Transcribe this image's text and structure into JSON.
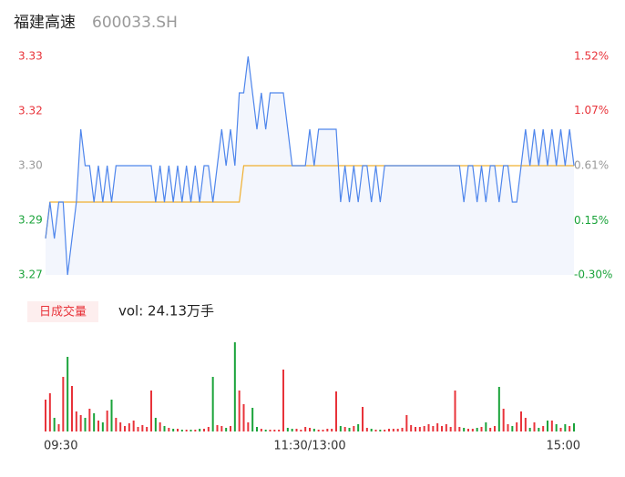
{
  "chart_data": {
    "type": "line",
    "title": "福建高速",
    "subtitle": "600033.SH",
    "x": [
      0,
      2,
      4,
      6,
      8,
      10,
      12,
      14,
      16,
      18,
      20,
      22,
      24,
      26,
      28,
      30,
      32,
      34,
      36,
      38,
      40,
      42,
      44,
      46,
      48,
      50,
      52,
      54,
      56,
      58,
      60,
      62,
      64,
      66,
      68,
      70,
      72,
      74,
      76,
      78,
      80,
      82,
      84,
      86,
      88,
      90,
      92,
      94,
      96,
      98,
      100,
      102,
      104,
      106,
      108,
      110,
      112,
      114,
      116,
      118,
      120,
      122,
      124,
      126,
      128,
      130,
      132,
      134,
      136,
      138,
      140,
      142,
      144,
      146,
      148,
      150,
      152,
      154,
      156,
      158,
      160,
      162,
      164,
      166,
      168,
      170,
      172,
      174,
      176,
      178,
      180,
      182,
      184,
      186,
      188,
      190,
      192,
      194,
      196,
      198,
      200,
      202,
      204,
      206,
      208,
      210,
      212,
      214,
      216,
      218,
      220,
      222,
      224,
      226,
      228,
      230,
      232,
      234,
      236,
      238,
      240
    ],
    "series": [
      {
        "color": "#4f86ec",
        "values": [
          3.28,
          3.29,
          3.28,
          3.29,
          3.29,
          3.27,
          3.28,
          3.29,
          3.31,
          3.3,
          3.3,
          3.29,
          3.3,
          3.29,
          3.3,
          3.29,
          3.3,
          3.3,
          3.3,
          3.3,
          3.3,
          3.3,
          3.3,
          3.3,
          3.3,
          3.29,
          3.3,
          3.29,
          3.3,
          3.29,
          3.3,
          3.29,
          3.3,
          3.29,
          3.3,
          3.29,
          3.3,
          3.3,
          3.29,
          3.3,
          3.31,
          3.3,
          3.31,
          3.3,
          3.32,
          3.32,
          3.33,
          3.32,
          3.31,
          3.32,
          3.31,
          3.32,
          3.32,
          3.32,
          3.32,
          3.31,
          3.3,
          3.3,
          3.3,
          3.3,
          3.31,
          3.3,
          3.31,
          3.31,
          3.31,
          3.31,
          3.31,
          3.29,
          3.3,
          3.29,
          3.3,
          3.29,
          3.3,
          3.3,
          3.29,
          3.3,
          3.29,
          3.3,
          3.3,
          3.3,
          3.3,
          3.3,
          3.3,
          3.3,
          3.3,
          3.3,
          3.3,
          3.3,
          3.3,
          3.3,
          3.3,
          3.3,
          3.3,
          3.3,
          3.3,
          3.29,
          3.3,
          3.3,
          3.29,
          3.3,
          3.29,
          3.3,
          3.3,
          3.29,
          3.3,
          3.3,
          3.29,
          3.29,
          3.3,
          3.31,
          3.3,
          3.31,
          3.3,
          3.31,
          3.3,
          3.31,
          3.3,
          3.31,
          3.3,
          3.31,
          3.3
        ]
      },
      {
        "color": "#f0b030",
        "values": [
          3.28,
          3.29,
          3.29,
          3.29,
          3.29,
          3.29,
          3.29,
          3.29,
          3.29,
          3.29,
          3.29,
          3.29,
          3.29,
          3.29,
          3.29,
          3.29,
          3.29,
          3.29,
          3.29,
          3.29,
          3.29,
          3.29,
          3.29,
          3.29,
          3.29,
          3.29,
          3.29,
          3.29,
          3.29,
          3.29,
          3.29,
          3.29,
          3.29,
          3.29,
          3.29,
          3.29,
          3.29,
          3.29,
          3.29,
          3.29,
          3.29,
          3.29,
          3.29,
          3.29,
          3.29,
          3.3,
          3.3,
          3.3,
          3.3,
          3.3,
          3.3,
          3.3,
          3.3,
          3.3,
          3.3,
          3.3,
          3.3,
          3.3,
          3.3,
          3.3,
          3.3,
          3.3,
          3.3,
          3.3,
          3.3,
          3.3,
          3.3,
          3.3,
          3.3,
          3.3,
          3.3,
          3.3,
          3.3,
          3.3,
          3.3,
          3.3,
          3.3,
          3.3,
          3.3,
          3.3,
          3.3,
          3.3,
          3.3,
          3.3,
          3.3,
          3.3,
          3.3,
          3.3,
          3.3,
          3.3,
          3.3,
          3.3,
          3.3,
          3.3,
          3.3,
          3.3,
          3.3,
          3.3,
          3.3,
          3.3,
          3.3,
          3.3,
          3.3,
          3.3,
          3.3,
          3.3,
          3.3,
          3.3,
          3.3,
          3.3,
          3.3,
          3.3,
          3.3,
          3.3,
          3.3,
          3.3,
          3.3,
          3.3,
          3.3,
          3.3,
          3.3
        ]
      }
    ],
    "xlim": [
      0,
      240
    ],
    "xticks": [
      {
        "value": 0,
        "label": "09:30"
      },
      {
        "value": 120,
        "label": "11:30/13:00"
      },
      {
        "value": 240,
        "label": "15:00"
      }
    ],
    "ylim": [
      3.27,
      3.33
    ],
    "yticks": [
      3.33,
      {
        "value": 3.315,
        "label": "3.32"
      },
      {
        "value": 3.3,
        "label": "3.30"
      },
      {
        "value": 3.285,
        "label": "3.29"
      },
      3.27
    ],
    "y2lim": [
      -0.3,
      1.52
    ],
    "y2ticks": [
      {
        "value": 1.52,
        "label": "1.52%"
      },
      {
        "value": 1.07,
        "label": "1.07%"
      },
      {
        "value": 0.61,
        "label": "0.61%"
      },
      {
        "value": 0.15,
        "label": "0.15%"
      },
      {
        "value": -0.3,
        "label": "-0.30%"
      }
    ],
    "up_color": "#e8333a",
    "down_color": "#1aa33a",
    "flat_color": "#999999",
    "volume": {
      "label": "日成交量",
      "text": "vol: 24.13万手",
      "values": [
        3500,
        4200,
        1500,
        800,
        6000,
        8200,
        5000,
        2200,
        1800,
        1500,
        2500,
        2000,
        1200,
        1000,
        2300,
        3500,
        1500,
        1000,
        600,
        900,
        1200,
        500,
        700,
        500,
        4500,
        1500,
        1000,
        600,
        400,
        300,
        300,
        200,
        200,
        200,
        200,
        300,
        300,
        500,
        6000,
        700,
        600,
        400,
        600,
        9800,
        4500,
        3000,
        1000,
        2600,
        500,
        300,
        200,
        200,
        200,
        200,
        6800,
        400,
        300,
        300,
        200,
        500,
        400,
        300,
        200,
        200,
        300,
        300,
        4400,
        600,
        500,
        400,
        600,
        800,
        2700,
        400,
        300,
        200,
        200,
        200,
        300,
        300,
        300,
        400,
        1800,
        700,
        500,
        500,
        600,
        800,
        600,
        900,
        600,
        800,
        500,
        4500,
        500,
        400,
        300,
        300,
        400,
        500,
        1000,
        400,
        600,
        4900,
        2500,
        800,
        600,
        1000,
        2200,
        1500,
        400,
        1000,
        400,
        600,
        1200,
        1200,
        800,
        400,
        800,
        600,
        900
      ]
    }
  }
}
